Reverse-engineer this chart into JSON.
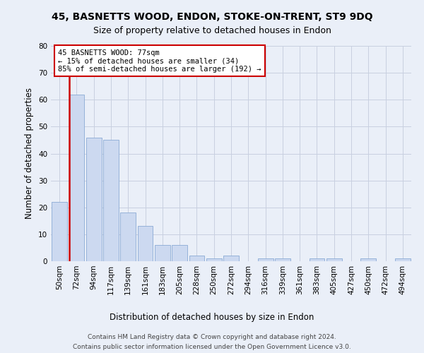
{
  "title": "45, BASNETTS WOOD, ENDON, STOKE-ON-TRENT, ST9 9DQ",
  "subtitle": "Size of property relative to detached houses in Endon",
  "xlabel": "Distribution of detached houses by size in Endon",
  "ylabel": "Number of detached properties",
  "bar_color": "#ccd9f0",
  "bar_edge_color": "#8aaad4",
  "highlight_bar_index": 1,
  "highlight_edge_color": "#cc0000",
  "annotation_box_color": "#ffffff",
  "annotation_box_edge": "#cc0000",
  "annotation_text": "45 BASNETTS WOOD: 77sqm\n← 15% of detached houses are smaller (34)\n85% of semi-detached houses are larger (192) →",
  "annotation_fontsize": 7.5,
  "categories": [
    "50sqm",
    "72sqm",
    "94sqm",
    "117sqm",
    "139sqm",
    "161sqm",
    "183sqm",
    "205sqm",
    "228sqm",
    "250sqm",
    "272sqm",
    "294sqm",
    "316sqm",
    "339sqm",
    "361sqm",
    "383sqm",
    "405sqm",
    "427sqm",
    "450sqm",
    "472sqm",
    "494sqm"
  ],
  "values": [
    22,
    62,
    46,
    45,
    18,
    13,
    6,
    6,
    2,
    1,
    2,
    0,
    1,
    1,
    0,
    1,
    1,
    0,
    1,
    0,
    1
  ],
  "ylim": [
    0,
    80
  ],
  "yticks": [
    0,
    10,
    20,
    30,
    40,
    50,
    60,
    70,
    80
  ],
  "grid_color": "#c8d0e0",
  "bg_color": "#eaeff8",
  "plot_bg_color": "#eaeff8",
  "footer1": "Contains HM Land Registry data © Crown copyright and database right 2024.",
  "footer2": "Contains public sector information licensed under the Open Government Licence v3.0.",
  "title_fontsize": 10,
  "subtitle_fontsize": 9,
  "axis_label_fontsize": 8.5,
  "tick_fontsize": 7.5,
  "footer_fontsize": 6.5
}
